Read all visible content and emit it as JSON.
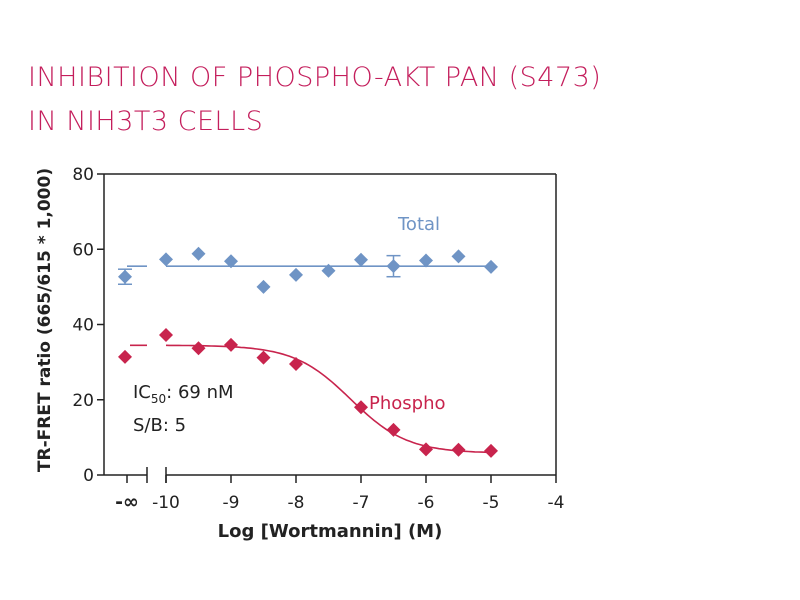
{
  "colors": {
    "title": "#c41e5c",
    "total": "#6f94c5",
    "phospho": "#c8244d",
    "axis": "#222222"
  },
  "chart_data": {
    "type": "scatter",
    "title_lines": [
      "INHIBITION OF PHOSPHO-AKT PAN (S473)",
      "IN NIH3T3 CELLS"
    ],
    "xlabel": "Log [Wortmannin] (M)",
    "ylabel": "TR-FRET ratio (665/615 * 1,000)",
    "xlim": [
      -10,
      -4
    ],
    "ylim": [
      0,
      80
    ],
    "x_ticks": [
      -10,
      -9,
      -8,
      -7,
      -6,
      -5,
      -4
    ],
    "x_tick_labels": [
      "-10",
      "-9",
      "-8",
      "-7",
      "-6",
      "-5",
      "-4"
    ],
    "neg_infinity_label": "-∞",
    "y_ticks": [
      0,
      20,
      40,
      60,
      80
    ],
    "y_tick_labels": [
      "0",
      "20",
      "40",
      "60",
      "80"
    ],
    "annotation": {
      "ic50_prefix": "IC",
      "ic50_sub": "50",
      "ic50_value": ": 69 nM",
      "sb": "S/B: 5"
    },
    "series": [
      {
        "name": "Total",
        "baseline_point": {
          "y": 52.7,
          "err": 2.0
        },
        "x": [
          -10,
          -9.5,
          -9,
          -8.5,
          -8,
          -7.5,
          -7,
          -6.5,
          -6,
          -5.5,
          -5
        ],
        "y": [
          57.3,
          58.8,
          56.8,
          50.0,
          53.2,
          54.3,
          57.2,
          55.5,
          57.0,
          58.1,
          55.3
        ],
        "err": [
          0,
          0,
          0,
          0,
          0,
          0,
          0,
          2.8,
          0,
          0,
          0
        ],
        "fit": {
          "kind": "flat",
          "y": 55.5
        }
      },
      {
        "name": "Phospho",
        "baseline_point": {
          "y": 31.4,
          "err": 0
        },
        "x": [
          -10,
          -9.5,
          -9,
          -8.5,
          -8,
          -7,
          -6.5,
          -6,
          -5.5,
          -5
        ],
        "y": [
          37.2,
          33.7,
          34.6,
          31.2,
          29.5,
          18.0,
          12.0,
          6.8,
          6.7,
          6.4
        ],
        "err": [
          0,
          0,
          0,
          0,
          0,
          0,
          0,
          0,
          0,
          0
        ],
        "fit": {
          "kind": "sigmoid",
          "top": 34.5,
          "bottom": 5.8,
          "logIC50": -7.16,
          "hill": 1.0
        }
      }
    ]
  }
}
